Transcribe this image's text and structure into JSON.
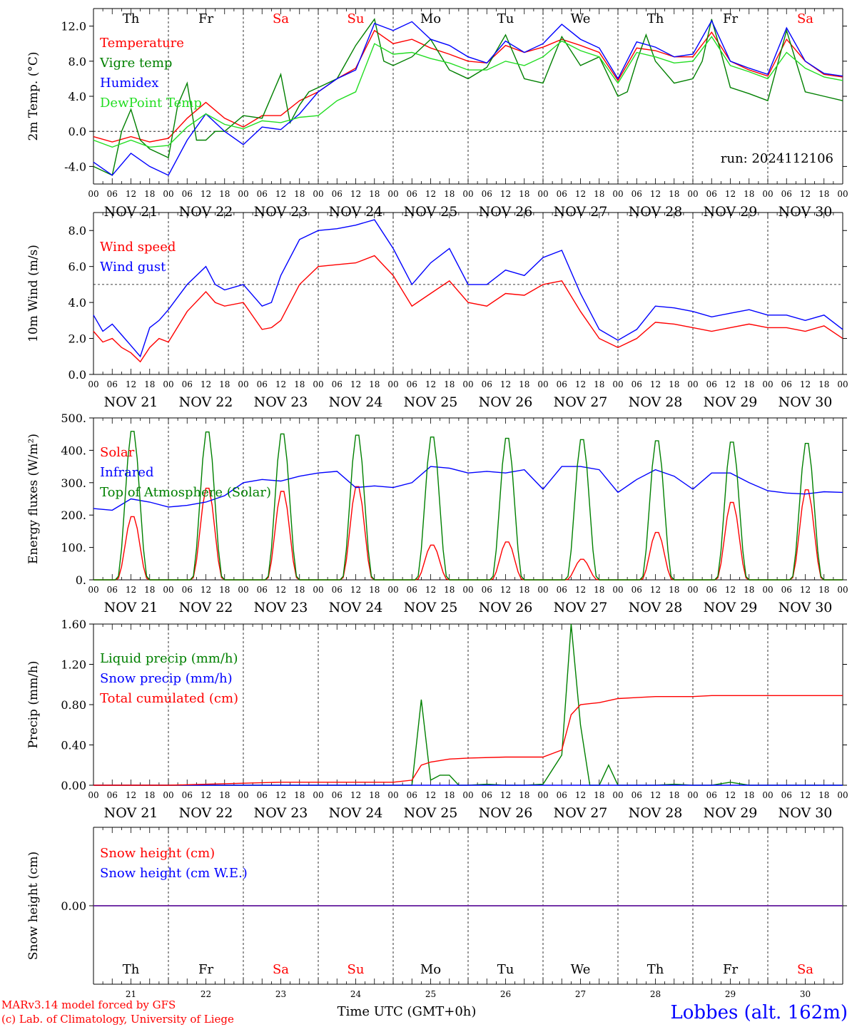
{
  "colors": {
    "red": "#ff0000",
    "dark_green": "#008000",
    "blue": "#0000ff",
    "light_green": "#22dd22",
    "purple": "#7030a0",
    "grid": "#000000"
  },
  "days_top": [
    {
      "label": "Th",
      "weekend": false
    },
    {
      "label": "Fr",
      "weekend": false
    },
    {
      "label": "Sa",
      "weekend": true
    },
    {
      "label": "Su",
      "weekend": true
    },
    {
      "label": "Mo",
      "weekend": false
    },
    {
      "label": "Tu",
      "weekend": false
    },
    {
      "label": "We",
      "weekend": false
    },
    {
      "label": "Th",
      "weekend": false
    },
    {
      "label": "Fr",
      "weekend": false
    },
    {
      "label": "Sa",
      "weekend": true
    }
  ],
  "date_labels": [
    "NOV 21",
    "NOV 22",
    "NOV 23",
    "NOV 24",
    "NOV 25",
    "NOV 26",
    "NOV 27",
    "NOV 28",
    "NOV 29",
    "NOV 30"
  ],
  "hour_labels": [
    "00",
    "06",
    "12",
    "18"
  ],
  "day_numbers": [
    "21",
    "22",
    "23",
    "24",
    "25",
    "26",
    "27",
    "28",
    "29",
    "30"
  ],
  "footer": {
    "credit1": "MARv3.14 model forced by GFS",
    "credit2": "(c) Lab. of Climatology, University of Liege",
    "xlabel": "Time UTC (GMT+0h)",
    "station": "Lobbes (alt. 162m)"
  },
  "chart_data": [
    {
      "type": "line",
      "ylabel": "2m Temp. (°C)",
      "ylim": [
        -6.0,
        14.0
      ],
      "yticks": [
        -4.0,
        0.0,
        4.0,
        8.0,
        12.0
      ],
      "ytick_labels": [
        "-4.0",
        "0.0",
        "4.0",
        "8.0",
        "12.0"
      ],
      "hline": 0.0,
      "annotation": "run: 2024112106",
      "x_unit": "hours since Nov 21 00 UTC",
      "series": [
        {
          "name": "Temperature",
          "color": "#ff0000",
          "x": [
            0,
            6,
            12,
            18,
            24,
            30,
            36,
            42,
            48,
            54,
            60,
            66,
            72,
            78,
            84,
            90,
            96,
            102,
            108,
            114,
            120,
            126,
            132,
            138,
            144,
            150,
            156,
            162,
            168,
            174,
            180,
            186,
            192,
            198,
            204,
            210,
            216,
            222,
            228,
            234,
            240
          ],
          "values": [
            -0.6,
            -1.2,
            -0.6,
            -1.2,
            -0.8,
            1.5,
            3.3,
            1.5,
            0.5,
            1.8,
            1.8,
            3.5,
            4.5,
            6,
            7.2,
            11.5,
            10,
            10.5,
            9.5,
            8.8,
            8,
            7.8,
            9.8,
            9,
            9.6,
            10.5,
            9.8,
            9,
            5.8,
            9.5,
            9.2,
            8.5,
            8.5,
            11.3,
            8,
            7,
            6.3,
            10.5,
            8,
            6.5,
            6.2
          ]
        },
        {
          "name": "Vigre temp",
          "color": "#008000",
          "x": [
            0,
            6,
            9,
            12,
            15,
            18,
            24,
            27,
            30,
            33,
            36,
            39,
            42,
            48,
            54,
            60,
            63,
            66,
            69,
            72,
            78,
            84,
            90,
            93,
            96,
            102,
            108,
            114,
            120,
            126,
            132,
            138,
            144,
            150,
            156,
            162,
            168,
            171,
            174,
            177,
            180,
            186,
            192,
            195,
            198,
            201,
            204,
            210,
            216,
            222,
            228,
            234,
            240
          ],
          "values": [
            -4,
            -5,
            0,
            2.5,
            -1,
            -2,
            -3,
            3,
            5.5,
            -1,
            -1,
            0,
            0,
            1.8,
            1.5,
            6.5,
            1,
            3,
            4.5,
            5,
            6,
            9.8,
            12.8,
            8,
            7.5,
            8.5,
            10.5,
            7,
            6,
            7.3,
            11,
            6,
            5.5,
            10.8,
            7.5,
            8.5,
            4,
            4.5,
            8,
            11,
            8,
            5.5,
            6,
            8,
            12.8,
            9,
            5,
            4.3,
            3.5,
            11.5,
            4.5,
            4,
            3.5
          ]
        },
        {
          "name": "Humidex",
          "color": "#0000ff",
          "x": [
            0,
            6,
            12,
            18,
            24,
            30,
            36,
            42,
            48,
            54,
            60,
            66,
            72,
            78,
            84,
            90,
            96,
            102,
            108,
            114,
            120,
            126,
            132,
            138,
            144,
            150,
            156,
            162,
            168,
            174,
            180,
            186,
            192,
            198,
            204,
            210,
            216,
            222,
            228,
            234,
            240
          ],
          "values": [
            -3.5,
            -5,
            -2.5,
            -4,
            -5,
            -1,
            2,
            0,
            -1.5,
            0.5,
            0.2,
            2,
            4.5,
            6,
            7,
            12.3,
            11.5,
            12.5,
            10.5,
            9.8,
            8.5,
            7.8,
            10.3,
            9,
            10,
            12.2,
            10.5,
            9.5,
            6,
            10.2,
            9.6,
            8.5,
            8.8,
            12.6,
            8,
            7.2,
            6.5,
            11.8,
            8,
            6.6,
            6.3
          ]
        },
        {
          "name": "DewPoint Temp",
          "color": "#22dd22",
          "x": [
            0,
            6,
            12,
            18,
            24,
            30,
            36,
            42,
            48,
            54,
            60,
            66,
            72,
            78,
            84,
            90,
            96,
            102,
            108,
            114,
            120,
            126,
            132,
            138,
            144,
            150,
            156,
            162,
            168,
            174,
            180,
            186,
            192,
            198,
            204,
            210,
            216,
            222,
            228,
            234,
            240
          ],
          "values": [
            -1,
            -1.8,
            -1,
            -1.8,
            -1.6,
            0.5,
            2,
            0.8,
            0.3,
            1.2,
            1,
            1.6,
            1.8,
            3.5,
            4.5,
            10,
            8.8,
            9,
            8.3,
            7.8,
            7,
            7,
            8,
            7.5,
            8.5,
            10.3,
            9.2,
            8.5,
            5.5,
            9,
            8.5,
            7.8,
            8,
            10.8,
            7.5,
            6.8,
            6,
            9,
            7.2,
            6.2,
            5.8
          ]
        }
      ]
    },
    {
      "type": "line",
      "ylabel": "10m Wind (m/s)",
      "ylim": [
        0.0,
        9.0
      ],
      "yticks": [
        0.0,
        2.0,
        4.0,
        6.0,
        8.0
      ],
      "ytick_labels": [
        "0.0",
        "2.0",
        "4.0",
        "6.0",
        "8.0"
      ],
      "hline": 5.0,
      "series": [
        {
          "name": "Wind speed",
          "color": "#ff0000",
          "x": [
            0,
            3,
            6,
            9,
            12,
            15,
            18,
            21,
            24,
            30,
            36,
            39,
            42,
            48,
            54,
            57,
            60,
            66,
            72,
            78,
            84,
            90,
            96,
            102,
            108,
            114,
            120,
            126,
            132,
            138,
            144,
            150,
            156,
            162,
            168,
            174,
            180,
            186,
            192,
            198,
            204,
            210,
            216,
            222,
            228,
            234,
            240
          ],
          "values": [
            2.4,
            1.8,
            2,
            1.5,
            1.2,
            0.7,
            1.5,
            2,
            1.8,
            3.5,
            4.6,
            4,
            3.8,
            4,
            2.5,
            2.6,
            3,
            5,
            6,
            6.1,
            6.2,
            6.6,
            5.5,
            3.8,
            4.5,
            5.2,
            4,
            3.8,
            4.5,
            4.4,
            5,
            5.2,
            3.5,
            2,
            1.5,
            2,
            2.9,
            2.8,
            2.6,
            2.4,
            2.6,
            2.8,
            2.6,
            2.6,
            2.4,
            2.7,
            2
          ]
        },
        {
          "name": "Wind gust",
          "color": "#0000ff",
          "x": [
            0,
            3,
            6,
            9,
            12,
            15,
            18,
            21,
            24,
            30,
            36,
            39,
            42,
            48,
            54,
            57,
            60,
            66,
            72,
            78,
            84,
            90,
            96,
            102,
            108,
            114,
            120,
            126,
            132,
            138,
            144,
            150,
            156,
            162,
            168,
            174,
            180,
            186,
            192,
            198,
            204,
            210,
            216,
            222,
            228,
            234,
            240
          ],
          "values": [
            3.3,
            2.4,
            2.8,
            2.2,
            1.6,
            1,
            2.6,
            3,
            3.6,
            5,
            6,
            5,
            4.7,
            5,
            3.8,
            4,
            5.5,
            7.5,
            8,
            8.1,
            8.3,
            8.6,
            7,
            5,
            6.2,
            7,
            5,
            5,
            5.8,
            5.5,
            6.5,
            6.9,
            4.5,
            2.5,
            1.9,
            2.5,
            3.8,
            3.7,
            3.5,
            3.2,
            3.4,
            3.6,
            3.3,
            3.3,
            3,
            3.3,
            2.5
          ]
        }
      ]
    },
    {
      "type": "line",
      "ylabel": "Energy fluxes (W/m²)",
      "ylim": [
        0,
        500
      ],
      "yticks": [
        0,
        100,
        200,
        300,
        400,
        500
      ],
      "ytick_labels": [
        "0.",
        "100.",
        "200.",
        "300.",
        "400.",
        "500."
      ],
      "series": [
        {
          "name": "Solar",
          "color": "#ff0000",
          "peaks": [
            200,
            290,
            280,
            295,
            110,
            120,
            65,
            150,
            245,
            285
          ]
        },
        {
          "name": "Infrared",
          "color": "#0000ff",
          "x": [
            0,
            6,
            12,
            18,
            24,
            30,
            36,
            42,
            48,
            54,
            60,
            66,
            72,
            78,
            84,
            90,
            96,
            102,
            108,
            114,
            120,
            126,
            132,
            138,
            144,
            150,
            156,
            162,
            168,
            174,
            180,
            186,
            192,
            198,
            204,
            210,
            216,
            222,
            228,
            234,
            240
          ],
          "values": [
            220,
            215,
            250,
            240,
            225,
            230,
            240,
            260,
            300,
            310,
            305,
            320,
            330,
            335,
            285,
            290,
            285,
            300,
            350,
            345,
            330,
            335,
            330,
            340,
            280,
            350,
            350,
            340,
            270,
            310,
            340,
            320,
            280,
            330,
            330,
            300,
            275,
            268,
            265,
            272,
            270
          ]
        },
        {
          "name": "Top of Atmosphere (Solar)",
          "color": "#008000",
          "peaks": [
            470,
            468,
            462,
            458,
            452,
            448,
            444,
            440,
            436,
            432
          ]
        }
      ]
    },
    {
      "type": "line",
      "ylabel": "Precip (mm/h)",
      "ylim": [
        0.0,
        1.6
      ],
      "yticks": [
        0.0,
        0.4,
        0.8,
        1.2,
        1.6
      ],
      "ytick_labels": [
        "0.00",
        "0.40",
        "0.80",
        "1.20",
        "1.60"
      ],
      "series": [
        {
          "name": "Liquid precip (mm/h)",
          "color": "#008000",
          "x": [
            0,
            96,
            102,
            105,
            108,
            111,
            114,
            117,
            120,
            126,
            132,
            138,
            144,
            150,
            153,
            156,
            159,
            162,
            165,
            168,
            171,
            174,
            180,
            186,
            192,
            198,
            204,
            210,
            216,
            222,
            228,
            234,
            240
          ],
          "values": [
            0,
            0,
            0,
            0.85,
            0.05,
            0.1,
            0.1,
            0,
            0,
            0.01,
            0,
            0,
            0.01,
            0.3,
            1.6,
            0.6,
            0,
            0,
            0.2,
            0,
            0,
            0,
            0,
            0.01,
            0,
            0,
            0.03,
            0,
            0,
            0,
            0,
            0,
            0
          ]
        },
        {
          "name": "Snow precip (mm/h)",
          "color": "#0000ff",
          "x": [
            0,
            240
          ],
          "values": [
            0,
            0
          ]
        },
        {
          "name": "Total cumulated (cm)",
          "color": "#ff0000",
          "x": [
            0,
            24,
            36,
            48,
            60,
            96,
            102,
            105,
            108,
            114,
            120,
            132,
            144,
            150,
            153,
            156,
            159,
            162,
            168,
            174,
            180,
            192,
            198,
            240
          ],
          "values": [
            0,
            0,
            0.01,
            0.02,
            0.03,
            0.03,
            0.05,
            0.2,
            0.23,
            0.26,
            0.27,
            0.28,
            0.28,
            0.35,
            0.7,
            0.8,
            0.81,
            0.82,
            0.86,
            0.87,
            0.88,
            0.88,
            0.89,
            0.89
          ]
        }
      ]
    },
    {
      "type": "line",
      "ylabel": "Snow height (cm)",
      "ylim": [
        -1.0,
        1.0
      ],
      "yticks": [
        0.0
      ],
      "ytick_labels": [
        "0.00"
      ],
      "series": [
        {
          "name": "Snow height (cm)",
          "color": "#ff0000",
          "x": [
            0,
            240
          ],
          "values": [
            0,
            0
          ]
        },
        {
          "name": "Snow height (cm W.E.)",
          "color": "#0000ff",
          "x": [
            0,
            240
          ],
          "values": [
            0,
            0
          ]
        }
      ]
    }
  ]
}
